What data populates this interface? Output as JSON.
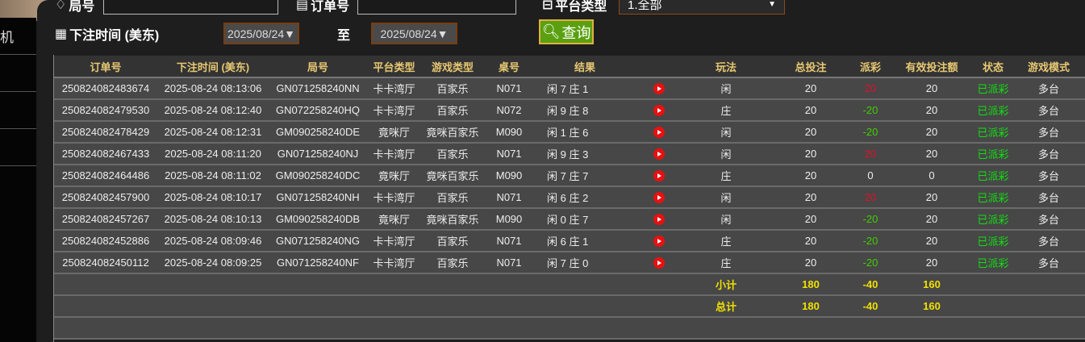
{
  "sidebar": {
    "items": [
      {
        "label": "机"
      },
      {
        "label": ""
      },
      {
        "label": ""
      },
      {
        "label": ""
      }
    ]
  },
  "filters": {
    "round_label": "局号",
    "round_value": "",
    "order_label": "订单号",
    "order_value": "",
    "platform_label": "平台类型",
    "platform_value": "1.全部",
    "time_label": "下注时间 (美东)",
    "date_from": "2025/08/24",
    "date_to": "2025/08/24",
    "to_label": "至",
    "query_label": "查询"
  },
  "table": {
    "headers": [
      "订单号",
      "下注时间 (美东)",
      "局号",
      "平台类型",
      "游戏类型",
      "桌号",
      "结果",
      "",
      "玩法",
      "总投注",
      "派彩",
      "有效投注额",
      "状态",
      "游戏模式"
    ],
    "rows": [
      [
        "250824082483674",
        "2025-08-24 08:13:06",
        "GN071258240NN",
        "卡卡湾厅",
        "百家乐",
        "N071",
        "闲 7 庄 1",
        "闲",
        "20",
        "20",
        "20",
        "已派彩",
        "多台"
      ],
      [
        "250824082479530",
        "2025-08-24 08:12:40",
        "GN072258240HQ",
        "卡卡湾厅",
        "百家乐",
        "N072",
        "闲 9 庄 8",
        "庄",
        "20",
        "-20",
        "20",
        "已派彩",
        "多台"
      ],
      [
        "250824082478429",
        "2025-08-24 08:12:31",
        "GM090258240DE",
        "竟咪厅",
        "竟咪百家乐",
        "M090",
        "闲 1 庄 6",
        "闲",
        "20",
        "-20",
        "20",
        "已派彩",
        "多台"
      ],
      [
        "250824082467433",
        "2025-08-24 08:11:20",
        "GN071258240NJ",
        "卡卡湾厅",
        "百家乐",
        "N071",
        "闲 9 庄 3",
        "闲",
        "20",
        "20",
        "20",
        "已派彩",
        "多台"
      ],
      [
        "250824082464486",
        "2025-08-24 08:11:02",
        "GM090258240DC",
        "竟咪厅",
        "竟咪百家乐",
        "M090",
        "闲 7 庄 7",
        "庄",
        "20",
        "0",
        "0",
        "已派彩",
        "多台"
      ],
      [
        "250824082457900",
        "2025-08-24 08:10:17",
        "GN071258240NH",
        "卡卡湾厅",
        "百家乐",
        "N071",
        "闲 6 庄 2",
        "闲",
        "20",
        "20",
        "20",
        "已派彩",
        "多台"
      ],
      [
        "250824082457267",
        "2025-08-24 08:10:13",
        "GM090258240DB",
        "竟咪厅",
        "竟咪百家乐",
        "M090",
        "闲 0 庄 7",
        "闲",
        "20",
        "-20",
        "20",
        "已派彩",
        "多台"
      ],
      [
        "250824082452886",
        "2025-08-24 08:09:46",
        "GN071258240NG",
        "卡卡湾厅",
        "百家乐",
        "N071",
        "闲 6 庄 1",
        "庄",
        "20",
        "-20",
        "20",
        "已派彩",
        "多台"
      ],
      [
        "250824082450112",
        "2025-08-24 08:09:25",
        "GN071258240NF",
        "卡卡湾厅",
        "百家乐",
        "N071",
        "闲 7 庄 0",
        "庄",
        "20",
        "-20",
        "20",
        "已派彩",
        "多台"
      ]
    ],
    "subtotal": {
      "label": "小计",
      "total_bet": "180",
      "payout": "-40",
      "valid_bet": "160"
    },
    "total": {
      "label": "总计",
      "total_bet": "180",
      "payout": "-40",
      "valid_bet": "160"
    }
  },
  "colors": {
    "header_text": "#e8c872",
    "payout_positive": "#e0102a",
    "payout_negative": "#3fcf00",
    "status": "#10e010",
    "summary": "#f0e000",
    "query_button": "#5aa010"
  }
}
